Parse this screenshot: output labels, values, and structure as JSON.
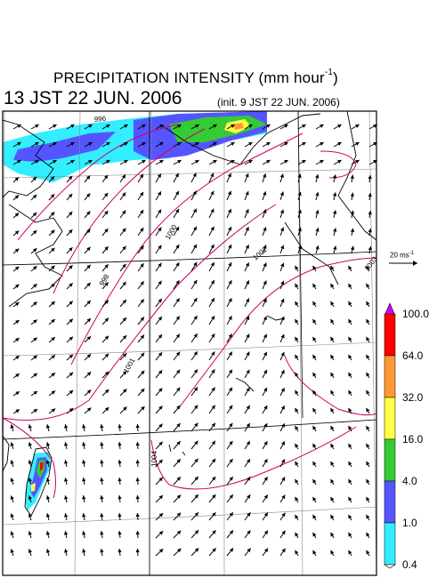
{
  "title": {
    "main": "PRECIPITATION INTENSITY (mm hour",
    "unit_exp": "-1",
    "close": ")"
  },
  "valid_time": "13 JST 22 JUN. 2006",
  "init_time": "(init. 9 JST 22 JUN. 2006)",
  "wind_scale": {
    "label": "20 ms",
    "exp": "-1"
  },
  "legend": {
    "levels": [
      "100.0",
      "64.0",
      "32.0",
      "16.0",
      "4.0",
      "1.0",
      "0.4"
    ],
    "colors": [
      "#cc00ff",
      "#ff0000",
      "#ff9933",
      "#ffff44",
      "#33cc33",
      "#5555ff",
      "#33eeff",
      "#ffffff"
    ]
  },
  "isobars": [
    {
      "label": "996",
      "color": "#cc0066"
    },
    {
      "label": "998",
      "color": "#cc0066"
    },
    {
      "label": "1000",
      "color": "#cc0066"
    },
    {
      "label": "1002",
      "color": "#cc0066"
    },
    {
      "label": "1003",
      "color": "#cc0066"
    }
  ],
  "isobar_labels_lower": [
    "1001"
  ],
  "colors": {
    "isobar": "#cc0066",
    "coast": "#000000",
    "grid": "#888888"
  }
}
